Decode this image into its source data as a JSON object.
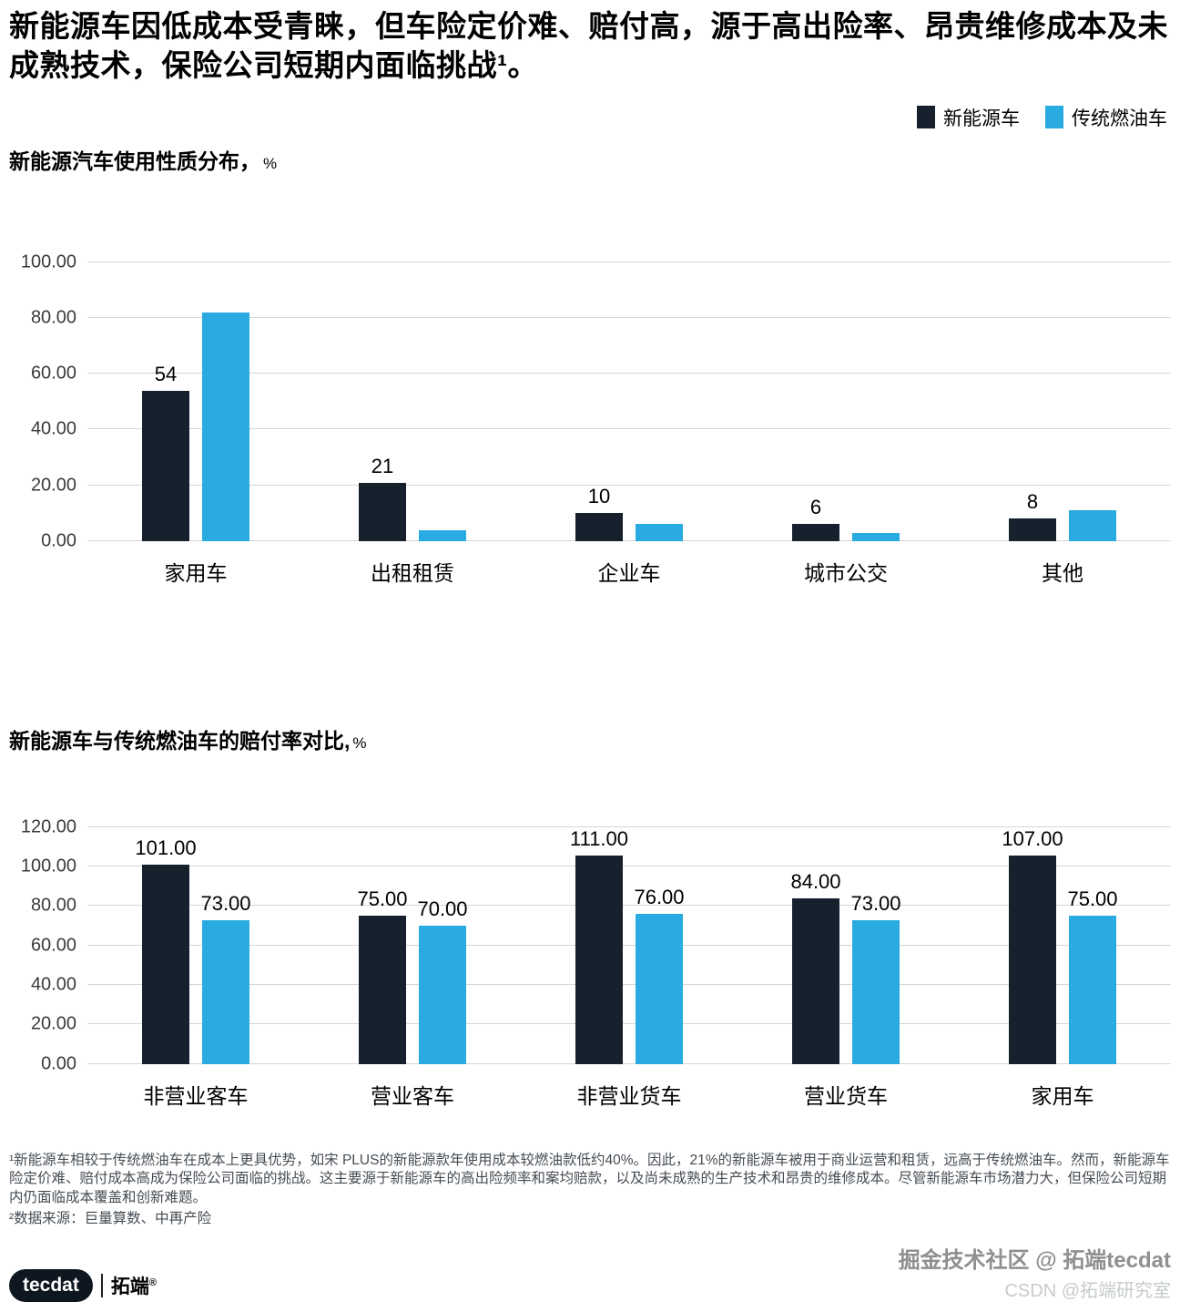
{
  "title": "新能源车因低成本受青睐，但车险定价难、赔付高，源于高出险率、昂贵维修成本及未成熟技术，保险公司短期内面临挑战¹。",
  "legend": {
    "items": [
      {
        "label": "新能源车",
        "color": "#16212d"
      },
      {
        "label": "传统燃油车",
        "color": "#29abe2"
      }
    ]
  },
  "chart_data": [
    {
      "type": "bar",
      "title": "新能源汽车使用性质分布，",
      "unit": "%",
      "categories": [
        "家用车",
        "出租租赁",
        "企业车",
        "城市公交",
        "其他"
      ],
      "series": [
        {
          "name": "新能源车",
          "color": "#16212d",
          "values": [
            54,
            21,
            10,
            6,
            8
          ],
          "labels": [
            "54",
            "21",
            "10",
            "6",
            "8"
          ]
        },
        {
          "name": "传统燃油车",
          "color": "#29abe2",
          "values": [
            82,
            4,
            6,
            3,
            11
          ],
          "labels": [
            "",
            "",
            "",
            "",
            ""
          ]
        }
      ],
      "ylim": [
        0,
        100
      ],
      "yticks": [
        "0.00",
        "20.00",
        "40.00",
        "60.00",
        "80.00",
        "100.00"
      ],
      "grid": true,
      "legend_position": "top-right"
    },
    {
      "type": "bar",
      "title": "新能源车与传统燃油车的赔付率对比,",
      "unit": "%",
      "categories": [
        "非营业客车",
        "营业客车",
        "非营业货车",
        "营业货车",
        "家用车"
      ],
      "series": [
        {
          "name": "新能源车",
          "color": "#16212d",
          "values": [
            101,
            75,
            111,
            84,
            107
          ],
          "labels": [
            "101.00",
            "75.00",
            "111.00",
            "84.00",
            "107.00"
          ]
        },
        {
          "name": "传统燃油车",
          "color": "#29abe2",
          "values": [
            73,
            70,
            76,
            73,
            75
          ],
          "labels": [
            "73.00",
            "70.00",
            "76.00",
            "73.00",
            "75.00"
          ]
        }
      ],
      "ylim": [
        0,
        120
      ],
      "yticks": [
        "0.00",
        "20.00",
        "40.00",
        "60.00",
        "80.00",
        "100.00",
        "120.00"
      ],
      "grid": true,
      "legend_position": "top-right"
    }
  ],
  "footnotes": [
    "¹新能源车相较于传统燃油车在成本上更具优势，如宋 PLUS的新能源款年使用成本较燃油款低约40%。因此，21%的新能源车被用于商业运营和租赁，远高于传统燃油车。然而，新能源车险定价难、赔付成本高成为保险公司面临的挑战。这主要源于新能源车的高出险频率和案均赔款，以及尚未成熟的生产技术和昂贵的维修成本。尽管新能源车市场潜力大，但保险公司短期内仍面临成本覆盖和创新难题。",
    "²数据来源：巨量算数、中再产险"
  ],
  "logo": {
    "brand": "tecdat",
    "cn": "拓端",
    "reg": "®"
  },
  "watermarks": [
    "掘金技术社区 @ 拓端tecdat",
    "CSDN @拓端研究室"
  ]
}
